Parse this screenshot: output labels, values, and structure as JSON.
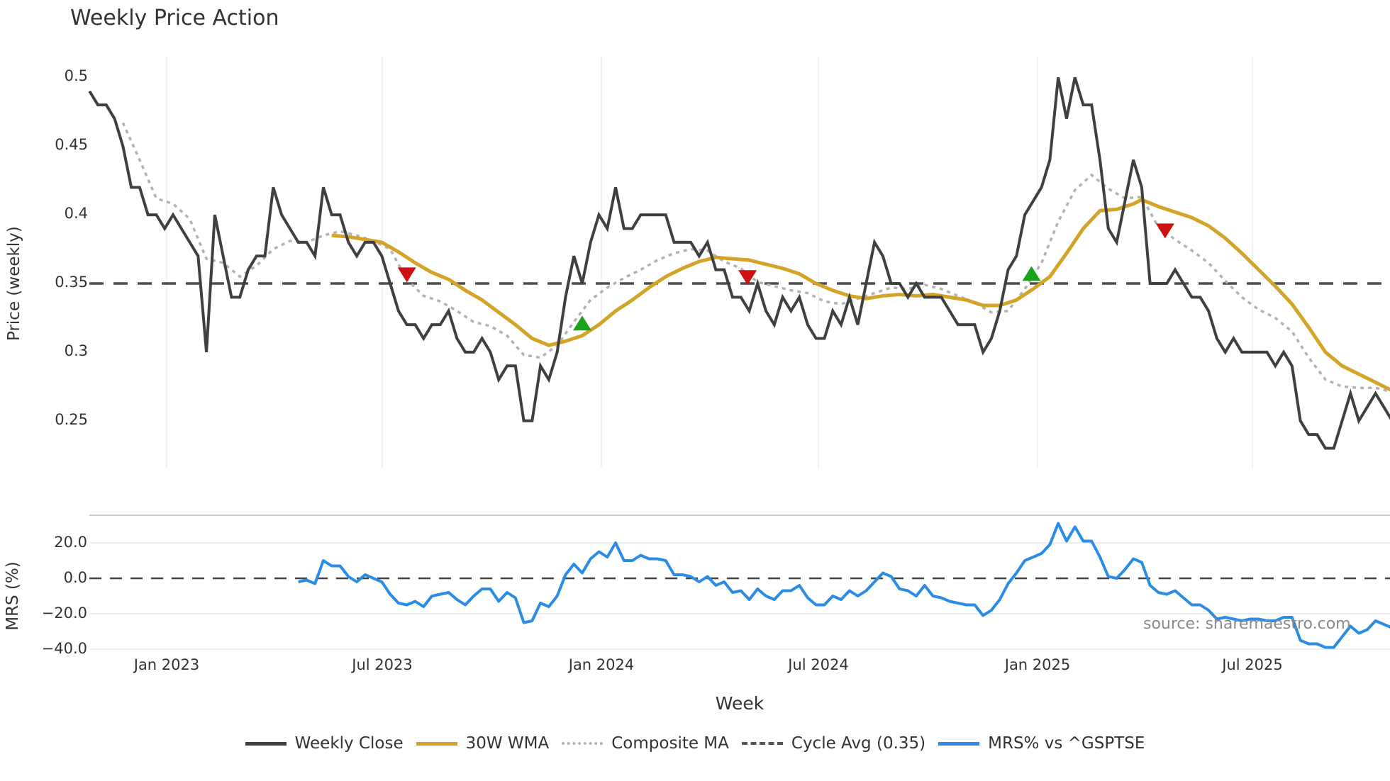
{
  "title": "Weekly Price Action",
  "price_axis": {
    "label": "Price (weekly)",
    "ticks": [
      "0.5",
      "0.45",
      "0.4",
      "0.35",
      "0.3",
      "0.25"
    ],
    "tick_values": [
      0.5,
      0.45,
      0.4,
      0.35,
      0.3,
      0.25
    ]
  },
  "mrs_axis": {
    "label": "MRS (%)",
    "ticks": [
      "20.0",
      "0.0",
      "−20.0",
      "−40.0"
    ],
    "tick_values": [
      20,
      0,
      -20,
      -40
    ]
  },
  "x_axis": {
    "label": "Week",
    "ticks": [
      "Jan 2023",
      "Jul 2023",
      "Jan 2024",
      "Jul 2024",
      "Jan 2025",
      "Jul 2025"
    ]
  },
  "source": "source: sharemaestro.com",
  "legend": [
    {
      "label": "Weekly Close",
      "color": "#404040",
      "style": "solid"
    },
    {
      "label": "30W WMA",
      "color": "#d4a429",
      "style": "solid"
    },
    {
      "label": "Composite MA",
      "color": "#b3b3b3",
      "style": "dotted"
    },
    {
      "label": "Cycle Avg (0.35)",
      "color": "#555555",
      "style": "dashed"
    },
    {
      "label": "MRS% vs ^GSPTSE",
      "color": "#2b8ce6",
      "style": "solid"
    }
  ],
  "colors": {
    "close": "#404040",
    "wma": "#d4a429",
    "composite": "#b3b3b3",
    "cycle": "#4d4d4d",
    "mrs": "#2b8ce6",
    "buy": "#1aa31a",
    "sell": "#cc1111",
    "grid": "#ebeef0"
  },
  "chart_data": [
    {
      "type": "line",
      "title": "Weekly Price Action",
      "xlabel": "Week",
      "ylabel": "Price (weekly)",
      "ylim": [
        0.21,
        0.52
      ],
      "x_ticks": [
        "Jan 2023",
        "Jul 2023",
        "Jan 2024",
        "Jul 2024",
        "Jan 2025",
        "Jul 2025"
      ],
      "x_start_week_index": 0,
      "x_note": "weekly points, first ~Oct 31 2022, last ~Oct 2025",
      "grid": true,
      "legend_position": "bottom",
      "cycle_avg": 0.35,
      "series": [
        {
          "name": "Weekly Close",
          "start_index": 0,
          "values": [
            0.49,
            0.48,
            0.48,
            0.47,
            0.45,
            0.42,
            0.42,
            0.4,
            0.4,
            0.39,
            0.4,
            0.39,
            0.38,
            0.37,
            0.3,
            0.4,
            0.37,
            0.34,
            0.34,
            0.36,
            0.37,
            0.37,
            0.42,
            0.4,
            0.39,
            0.38,
            0.38,
            0.37,
            0.42,
            0.4,
            0.4,
            0.38,
            0.37,
            0.38,
            0.38,
            0.37,
            0.35,
            0.33,
            0.32,
            0.32,
            0.31,
            0.32,
            0.32,
            0.33,
            0.31,
            0.3,
            0.3,
            0.31,
            0.3,
            0.28,
            0.29,
            0.29,
            0.25,
            0.25,
            0.29,
            0.28,
            0.3,
            0.34,
            0.37,
            0.35,
            0.38,
            0.4,
            0.39,
            0.42,
            0.39,
            0.39,
            0.4,
            0.4,
            0.4,
            0.4,
            0.38,
            0.38,
            0.38,
            0.37,
            0.38,
            0.36,
            0.36,
            0.34,
            0.34,
            0.33,
            0.35,
            0.33,
            0.32,
            0.34,
            0.33,
            0.34,
            0.32,
            0.31,
            0.31,
            0.33,
            0.32,
            0.34,
            0.32,
            0.35,
            0.38,
            0.37,
            0.35,
            0.35,
            0.34,
            0.35,
            0.34,
            0.34,
            0.34,
            0.33,
            0.32,
            0.32,
            0.32,
            0.3,
            0.31,
            0.33,
            0.36,
            0.37,
            0.4,
            0.41,
            0.42,
            0.44,
            0.5,
            0.47,
            0.5,
            0.48,
            0.48,
            0.44,
            0.39,
            0.38,
            0.41,
            0.44,
            0.42,
            0.35,
            0.35,
            0.35,
            0.36,
            0.35,
            0.34,
            0.34,
            0.33,
            0.31,
            0.3,
            0.31,
            0.3,
            0.3,
            0.3,
            0.3,
            0.29,
            0.3,
            0.29,
            0.25,
            0.24,
            0.24,
            0.23,
            0.23,
            0.25,
            0.27,
            0.25,
            0.26,
            0.27,
            0.26,
            0.25
          ]
        },
        {
          "name": "30W WMA",
          "points": [
            [
              29,
              0.385
            ],
            [
              31,
              0.384
            ],
            [
              33,
              0.382
            ],
            [
              35,
              0.38
            ],
            [
              37,
              0.373
            ],
            [
              39,
              0.365
            ],
            [
              41,
              0.358
            ],
            [
              43,
              0.353
            ],
            [
              45,
              0.345
            ],
            [
              47,
              0.338
            ],
            [
              49,
              0.329
            ],
            [
              51,
              0.32
            ],
            [
              53,
              0.31
            ],
            [
              55,
              0.305
            ],
            [
              57,
              0.308
            ],
            [
              59,
              0.312
            ],
            [
              61,
              0.32
            ],
            [
              63,
              0.33
            ],
            [
              65,
              0.338
            ],
            [
              67,
              0.347
            ],
            [
              69,
              0.355
            ],
            [
              71,
              0.361
            ],
            [
              73,
              0.366
            ],
            [
              75,
              0.369
            ],
            [
              77,
              0.368
            ],
            [
              79,
              0.367
            ],
            [
              81,
              0.364
            ],
            [
              83,
              0.361
            ],
            [
              85,
              0.357
            ],
            [
              87,
              0.35
            ],
            [
              89,
              0.345
            ],
            [
              91,
              0.341
            ],
            [
              93,
              0.339
            ],
            [
              95,
              0.341
            ],
            [
              97,
              0.342
            ],
            [
              99,
              0.341
            ],
            [
              101,
              0.342
            ],
            [
              103,
              0.34
            ],
            [
              105,
              0.338
            ],
            [
              107,
              0.334
            ],
            [
              109,
              0.334
            ],
            [
              111,
              0.338
            ],
            [
              113,
              0.346
            ],
            [
              115,
              0.355
            ],
            [
              117,
              0.372
            ],
            [
              119,
              0.39
            ],
            [
              121,
              0.403
            ],
            [
              123,
              0.404
            ],
            [
              125,
              0.408
            ],
            [
              126,
              0.411
            ],
            [
              128,
              0.406
            ],
            [
              130,
              0.402
            ],
            [
              132,
              0.398
            ],
            [
              134,
              0.392
            ],
            [
              136,
              0.383
            ],
            [
              138,
              0.372
            ],
            [
              140,
              0.36
            ],
            [
              142,
              0.348
            ],
            [
              144,
              0.335
            ],
            [
              146,
              0.318
            ],
            [
              148,
              0.3
            ],
            [
              150,
              0.29
            ],
            [
              152,
              0.284
            ],
            [
              154,
              0.278
            ],
            [
              156,
              0.272
            ]
          ]
        },
        {
          "name": "Composite MA",
          "points": [
            [
              4,
              0.467
            ],
            [
              6,
              0.44
            ],
            [
              8,
              0.412
            ],
            [
              10,
              0.408
            ],
            [
              12,
              0.397
            ],
            [
              14,
              0.368
            ],
            [
              16,
              0.365
            ],
            [
              18,
              0.355
            ],
            [
              20,
              0.363
            ],
            [
              22,
              0.375
            ],
            [
              24,
              0.381
            ],
            [
              26,
              0.38
            ],
            [
              28,
              0.385
            ],
            [
              30,
              0.388
            ],
            [
              32,
              0.385
            ],
            [
              34,
              0.381
            ],
            [
              36,
              0.375
            ],
            [
              38,
              0.353
            ],
            [
              40,
              0.341
            ],
            [
              42,
              0.337
            ],
            [
              44,
              0.33
            ],
            [
              46,
              0.322
            ],
            [
              48,
              0.319
            ],
            [
              50,
              0.312
            ],
            [
              52,
              0.298
            ],
            [
              54,
              0.296
            ],
            [
              56,
              0.305
            ],
            [
              58,
              0.322
            ],
            [
              60,
              0.338
            ],
            [
              62,
              0.347
            ],
            [
              64,
              0.354
            ],
            [
              66,
              0.36
            ],
            [
              68,
              0.367
            ],
            [
              70,
              0.372
            ],
            [
              72,
              0.375
            ],
            [
              74,
              0.374
            ],
            [
              76,
              0.366
            ],
            [
              78,
              0.361
            ],
            [
              80,
              0.351
            ],
            [
              82,
              0.348
            ],
            [
              84,
              0.345
            ],
            [
              86,
              0.343
            ],
            [
              88,
              0.337
            ],
            [
              90,
              0.335
            ],
            [
              92,
              0.339
            ],
            [
              94,
              0.343
            ],
            [
              96,
              0.347
            ],
            [
              98,
              0.346
            ],
            [
              100,
              0.349
            ],
            [
              102,
              0.346
            ],
            [
              104,
              0.341
            ],
            [
              106,
              0.336
            ],
            [
              108,
              0.329
            ],
            [
              110,
              0.33
            ],
            [
              112,
              0.346
            ],
            [
              114,
              0.365
            ],
            [
              116,
              0.395
            ],
            [
              118,
              0.418
            ],
            [
              120,
              0.429
            ],
            [
              122,
              0.419
            ],
            [
              124,
              0.412
            ],
            [
              126,
              0.413
            ],
            [
              128,
              0.391
            ],
            [
              130,
              0.382
            ],
            [
              132,
              0.374
            ],
            [
              134,
              0.365
            ],
            [
              136,
              0.352
            ],
            [
              138,
              0.34
            ],
            [
              140,
              0.331
            ],
            [
              142,
              0.325
            ],
            [
              144,
              0.315
            ],
            [
              146,
              0.296
            ],
            [
              148,
              0.28
            ],
            [
              150,
              0.275
            ],
            [
              152,
              0.274
            ],
            [
              154,
              0.274
            ],
            [
              156,
              0.271
            ]
          ]
        },
        {
          "name": "Cycle Avg (0.35)",
          "constant": 0.35
        }
      ],
      "markers": [
        {
          "type": "sell",
          "week": 38,
          "value": 0.356
        },
        {
          "type": "buy",
          "week": 59,
          "value": 0.321
        },
        {
          "type": "sell",
          "week": 78.8,
          "value": 0.354
        },
        {
          "type": "buy",
          "week": 112.8,
          "value": 0.357
        },
        {
          "type": "sell",
          "week": 128.8,
          "value": 0.388
        }
      ]
    },
    {
      "type": "line",
      "title": "",
      "xlabel": "Week",
      "ylabel": "MRS (%)",
      "ylim": [
        -42,
        37
      ],
      "zero_line": 0,
      "series": [
        {
          "name": "MRS% vs ^GSPTSE",
          "start_index": 25,
          "values": [
            -2,
            -1,
            -3,
            10,
            7,
            7,
            1,
            -2,
            2,
            0,
            -2,
            -9,
            -14,
            -15,
            -13,
            -16,
            -10,
            -9,
            -8,
            -12,
            -15,
            -10,
            -6,
            -6,
            -13,
            -8,
            -11,
            -25,
            -24,
            -14,
            -16,
            -10,
            2,
            8,
            3,
            11,
            15,
            12,
            20,
            10,
            10,
            13,
            11,
            11,
            10,
            2,
            2,
            1,
            -2,
            1,
            -4,
            -2,
            -8,
            -7,
            -12,
            -6,
            -10,
            -12,
            -7,
            -7,
            -4,
            -11,
            -15,
            -15,
            -10,
            -12,
            -7,
            -10,
            -7,
            -2,
            3,
            1,
            -6,
            -7,
            -10,
            -4,
            -10,
            -11,
            -13,
            -14,
            -15,
            -15,
            -21,
            -18,
            -12,
            -3,
            3,
            10,
            12,
            14,
            19,
            31,
            21,
            29,
            21,
            21,
            12,
            1,
            0,
            5,
            11,
            9,
            -4,
            -8,
            -9,
            -7,
            -11,
            -15,
            -15,
            -18,
            -23,
            -22,
            -23,
            -24,
            -23,
            -23,
            -24,
            -24,
            -22,
            -22,
            -35,
            -37,
            -37,
            -39,
            -39,
            -33,
            -27,
            -31,
            -29,
            -24,
            -26,
            -28
          ]
        }
      ]
    }
  ]
}
